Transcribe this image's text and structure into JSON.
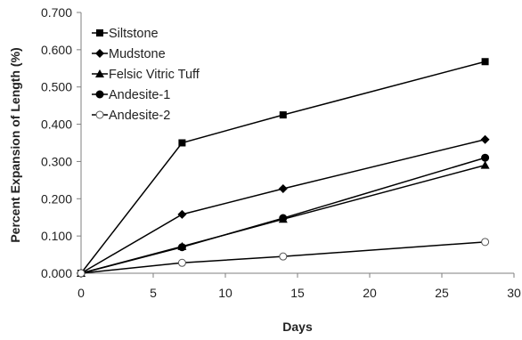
{
  "chart_data": {
    "type": "line",
    "title": "",
    "xlabel": "Days",
    "ylabel": "Percent Expansion of Length (%)",
    "xlim": [
      0,
      30
    ],
    "ylim": [
      0,
      0.7
    ],
    "xticks": [
      0,
      5,
      10,
      15,
      20,
      25,
      30
    ],
    "yticks": [
      "0.000",
      "0.100",
      "0.200",
      "0.300",
      "0.400",
      "0.500",
      "0.600",
      "0.700"
    ],
    "grid": false,
    "legend": "top-left",
    "x": [
      0,
      7,
      14,
      28
    ],
    "series": [
      {
        "name": "Siltstone",
        "marker": "square",
        "values": [
          0,
          0.35,
          0.425,
          0.568
        ]
      },
      {
        "name": "Mudstone",
        "marker": "diamond",
        "values": [
          0,
          0.158,
          0.227,
          0.359
        ]
      },
      {
        "name": "Felsic Vitric Tuff",
        "marker": "triangle",
        "values": [
          0,
          0.072,
          0.145,
          0.29
        ]
      },
      {
        "name": "Andesite-1",
        "marker": "circle",
        "values": [
          0,
          0.07,
          0.148,
          0.31
        ]
      },
      {
        "name": "Andesite-2",
        "marker": "open-circle",
        "values": [
          0,
          0.028,
          0.045,
          0.084
        ]
      }
    ],
    "colors": {
      "line": "#000000",
      "axis": "#7f7f7f"
    }
  }
}
